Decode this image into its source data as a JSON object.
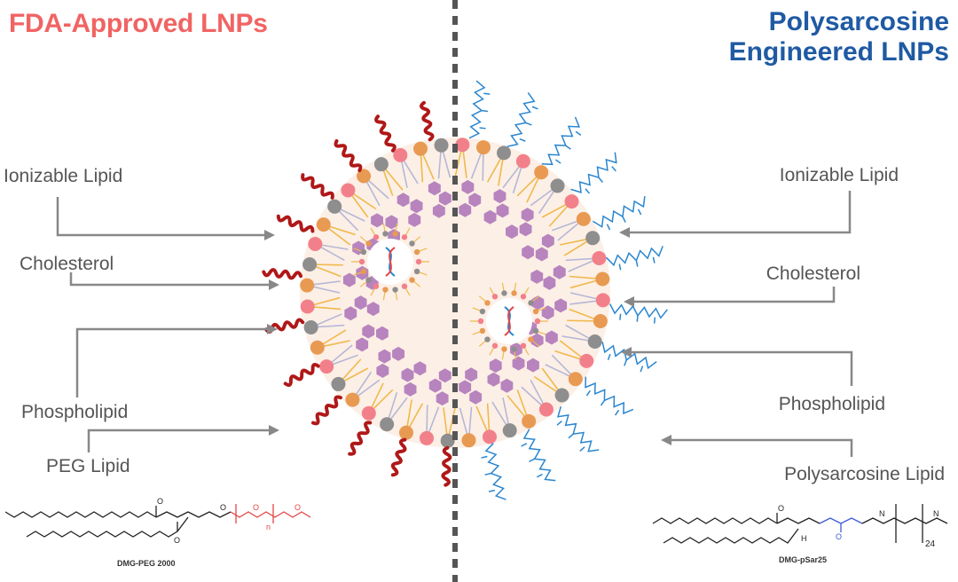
{
  "titles": {
    "left": "FDA-Approved LNPs",
    "right_line1": "Polysarcosine",
    "right_line2": "Engineered LNPs"
  },
  "left_labels": {
    "ionizable": "Ionizable Lipid",
    "cholesterol": "Cholesterol",
    "phospholipid": "Phospholipid",
    "peg": "PEG Lipid"
  },
  "right_labels": {
    "ionizable": "Ionizable Lipid",
    "cholesterol": "Cholesterol",
    "phospholipid": "Phospholipid",
    "psar": "Polysarcosine Lipid"
  },
  "structures": {
    "left_caption": "DMG-PEG 2000",
    "left_subscript": "n",
    "right_caption": "DMG-pSar25",
    "right_subscript": "24",
    "atom_o": "O",
    "atom_n": "N",
    "atom_h": "H"
  },
  "colors": {
    "title_left": "#f06463",
    "title_right": "#1f5aa3",
    "peg": "#b01818",
    "psar": "#2a86d0",
    "ionizable": "#e89a52",
    "cholesterol": "#8e8e8e",
    "phospholipid": "#f2808a",
    "cholesterol_ring": "#a060b0",
    "core": "#fcefe6"
  }
}
